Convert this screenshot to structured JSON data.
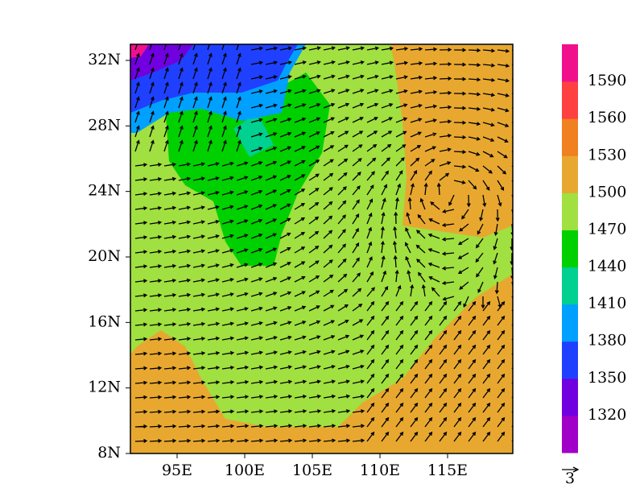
{
  "map": {
    "lat_ticks": [
      "32N",
      "28N",
      "24N",
      "20N",
      "16N",
      "12N",
      "8N"
    ],
    "lon_ticks": [
      "95E",
      "100E",
      "105E",
      "110E",
      "115E"
    ],
    "colorbar": {
      "levels": [
        1320,
        1350,
        1380,
        1410,
        1440,
        1470,
        1500,
        1530,
        1560,
        1590
      ],
      "colors": [
        "#a000c8",
        "#7000e0",
        "#2040ff",
        "#00a0ff",
        "#00d090",
        "#00d000",
        "#a0e040",
        "#e8a830",
        "#f08020",
        "#ff4040",
        "#f0108c"
      ]
    },
    "reference_vector": "3"
  }
}
